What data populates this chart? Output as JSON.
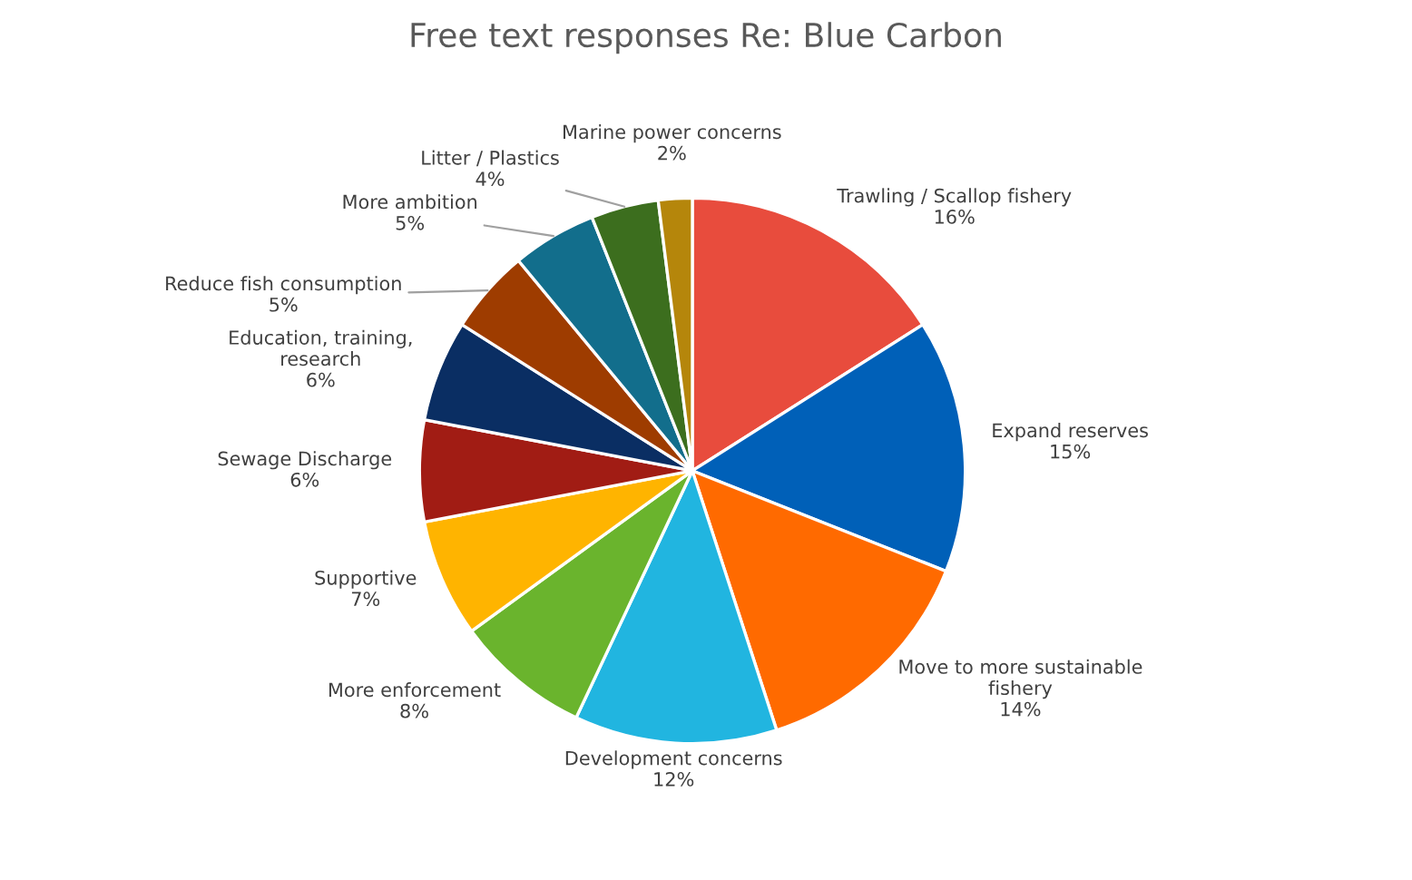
{
  "chart_data": {
    "type": "pie",
    "title": "Free text responses Re: Blue Carbon",
    "categories": [
      "Trawling / Scallop fishery",
      "Expand reserves",
      "Move to more sustainable\nfishery",
      "Development concerns",
      "More enforcement",
      "Supportive",
      "Sewage Discharge",
      "Education, training,\nresearch",
      "Reduce fish consumption",
      "More ambition",
      "Litter / Plastics",
      "Marine power concerns"
    ],
    "values": [
      16,
      15,
      14,
      12,
      8,
      7,
      6,
      6,
      5,
      5,
      4,
      2
    ],
    "value_labels": [
      "16%",
      "15%",
      "14%",
      "12%",
      "8%",
      "7%",
      "6%",
      "6%",
      "5%",
      "5%",
      "4%",
      "2%"
    ],
    "colors": [
      "#e84c3d",
      "#0060b8",
      "#ff6a00",
      "#21b5e0",
      "#6ab42d",
      "#ffb400",
      "#a11c14",
      "#0a2e63",
      "#9e3c00",
      "#126e8c",
      "#3c6e1e",
      "#b5860b"
    ],
    "legend": false
  }
}
